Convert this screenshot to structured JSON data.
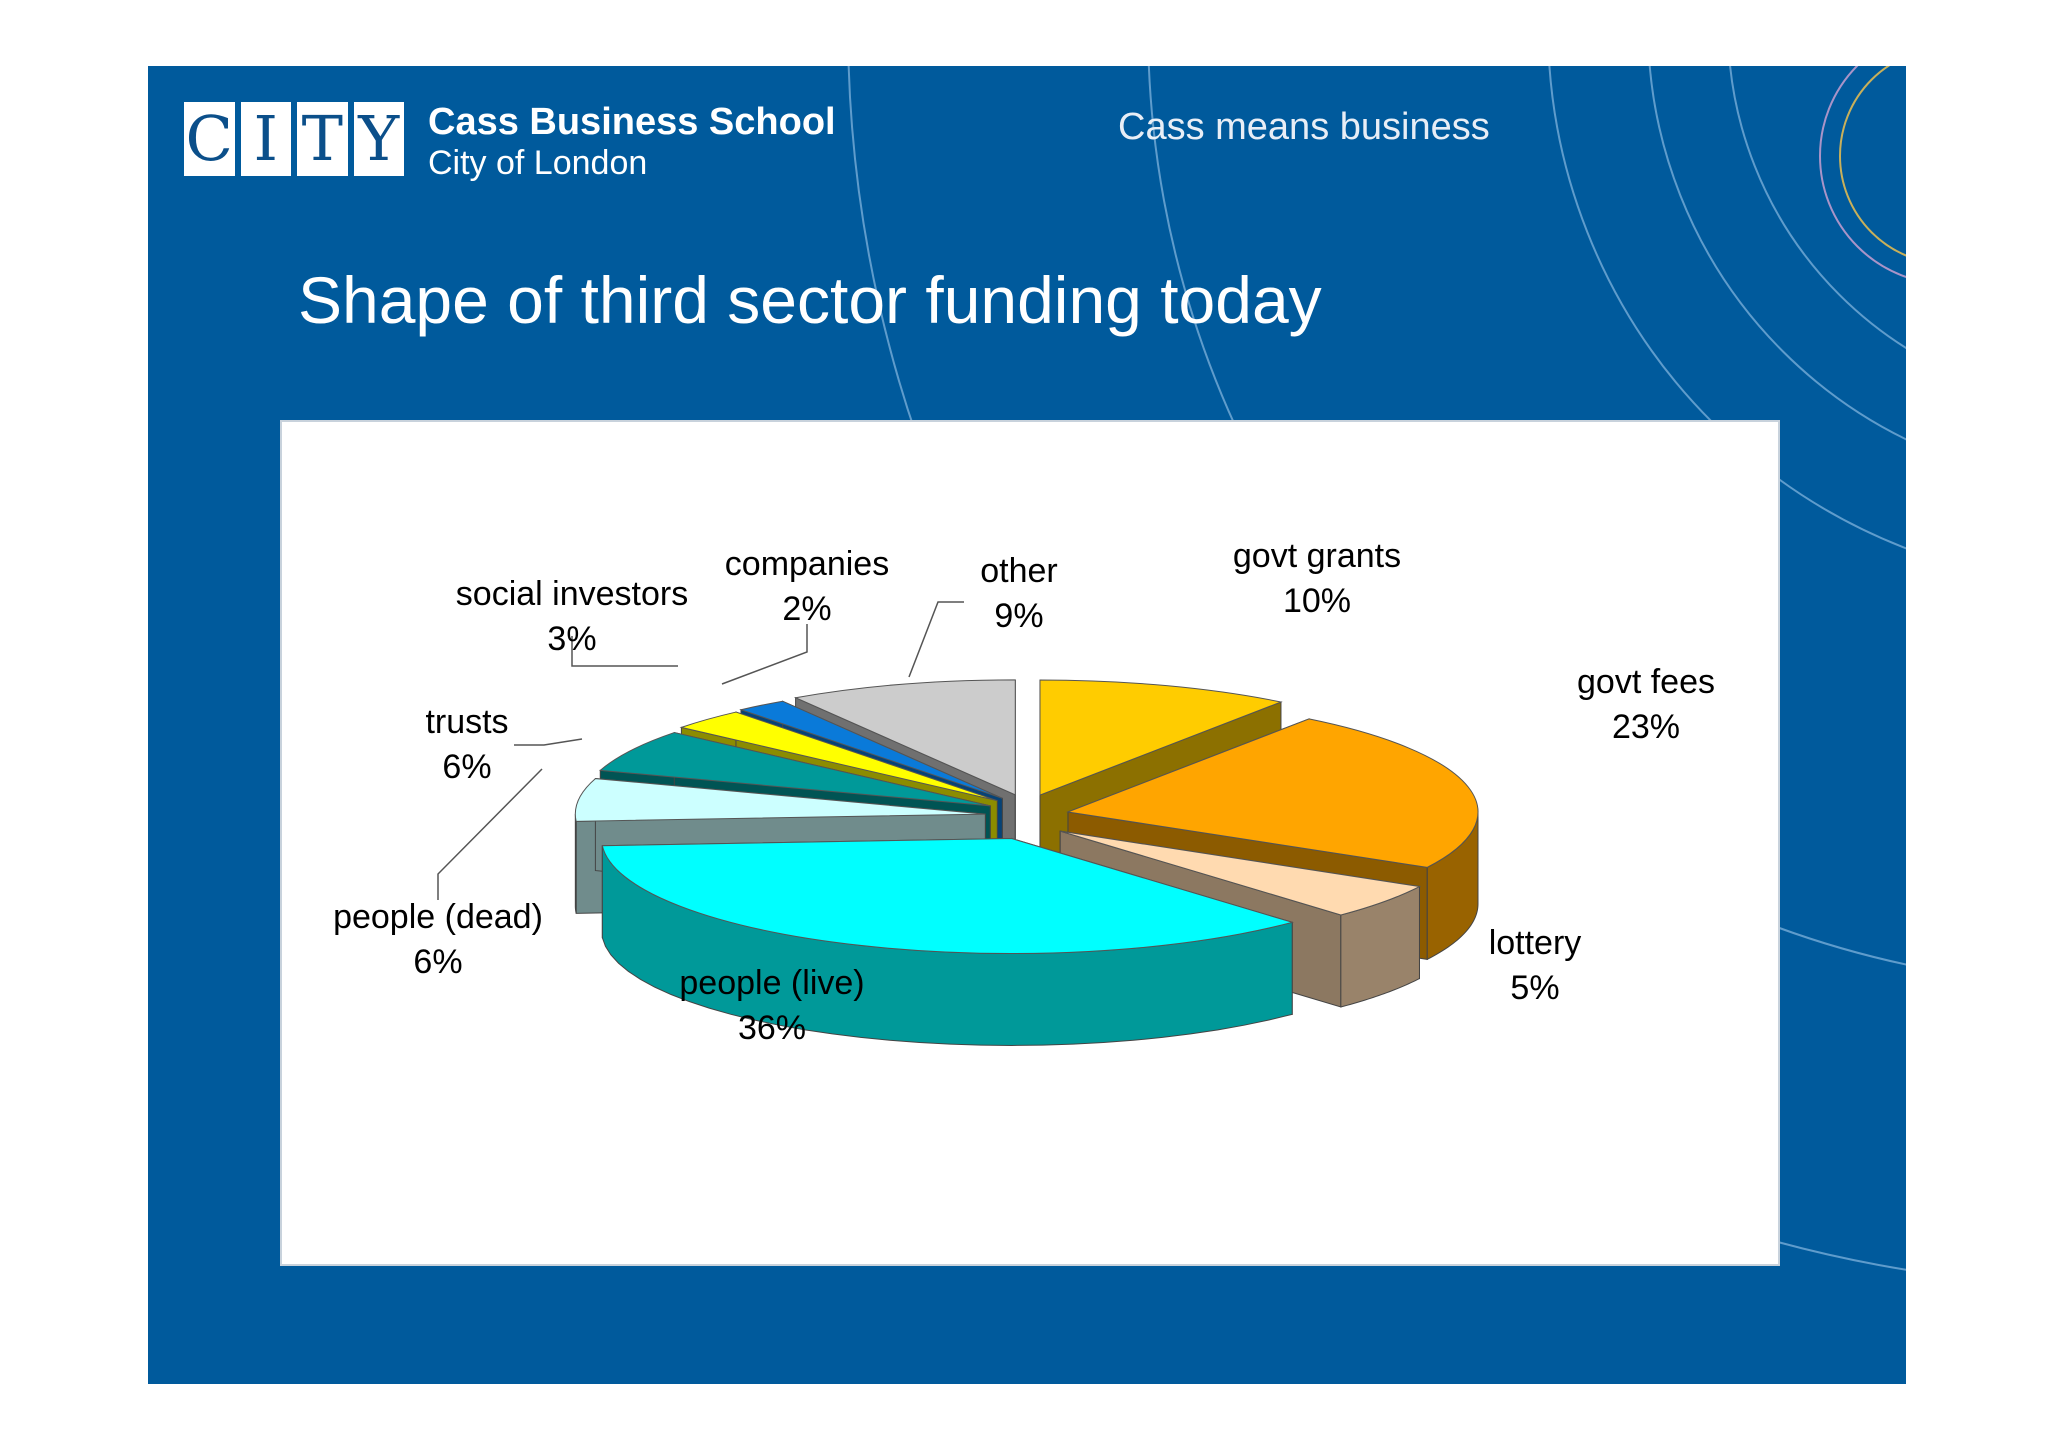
{
  "header": {
    "logo_text": [
      "C",
      "I",
      "T",
      "Y"
    ],
    "school_name": "Cass Business School",
    "school_location": "City of London",
    "tagline": "Cass means business"
  },
  "slide": {
    "title": "Shape of third sector funding today",
    "background_color": "#005a9c"
  },
  "chart_data": {
    "type": "pie",
    "style": "3d-exploded",
    "unit": "%",
    "slices": [
      {
        "label": "govt grants",
        "value": 10,
        "value_label": "10%",
        "color": "#ffcc00"
      },
      {
        "label": "govt fees",
        "value": 23,
        "value_label": "23%",
        "color": "#ffa500"
      },
      {
        "label": "lottery",
        "value": 5,
        "value_label": "5%",
        "color": "#ffdab0"
      },
      {
        "label": "people (live)",
        "value": 36,
        "value_label": "36%",
        "color": "#00ffff"
      },
      {
        "label": "people (dead)",
        "value": 6,
        "value_label": "6%",
        "color": "#ccffff"
      },
      {
        "label": "trusts",
        "value": 6,
        "value_label": "6%",
        "color": "#009999"
      },
      {
        "label": "social investors",
        "value": 3,
        "value_label": "3%",
        "color": "#ffff00"
      },
      {
        "label": "companies",
        "value": 2,
        "value_label": "2%",
        "color": "#0a7ad9"
      },
      {
        "label": "other",
        "value": 9,
        "value_label": "9%",
        "color": "#cccccc"
      }
    ]
  }
}
